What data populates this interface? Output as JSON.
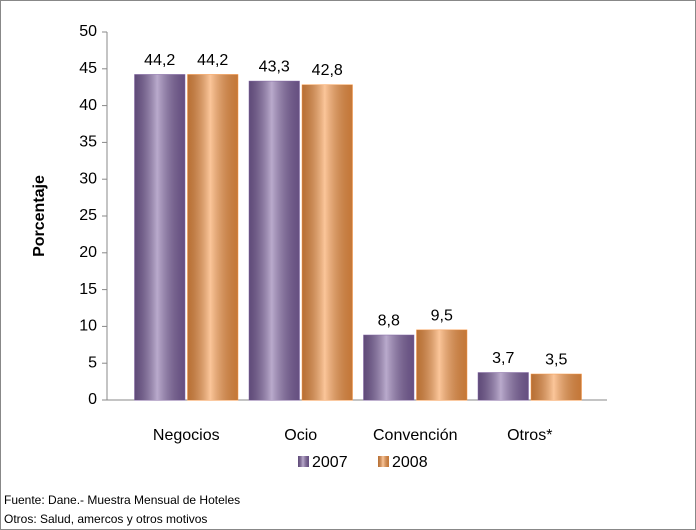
{
  "chart_data": {
    "type": "bar",
    "y_label": "Porcentaje",
    "categories": [
      "Negocios",
      "Ocio",
      "Convención",
      "Otros*"
    ],
    "series": [
      {
        "name": "2007",
        "color": "#8064a2",
        "values": [
          44.2,
          43.3,
          8.8,
          3.7
        ],
        "value_labels": [
          "44,2",
          "43,3",
          "8,8",
          "3,7"
        ]
      },
      {
        "name": "2008",
        "color": "#f79646",
        "values": [
          44.2,
          42.8,
          9.5,
          3.5
        ],
        "value_labels": [
          "44,2",
          "42,8",
          "9,5",
          "3,5"
        ]
      }
    ],
    "ylim": [
      0,
      50
    ],
    "yticks": [
      0,
      5,
      10,
      15,
      20,
      25,
      30,
      35,
      40,
      45,
      50
    ],
    "legend": "bottom",
    "notes": [
      "Fuente: Dane.- Muestra Mensual de Hoteles",
      "Otros: Salud, amercos y otros motivos"
    ]
  }
}
